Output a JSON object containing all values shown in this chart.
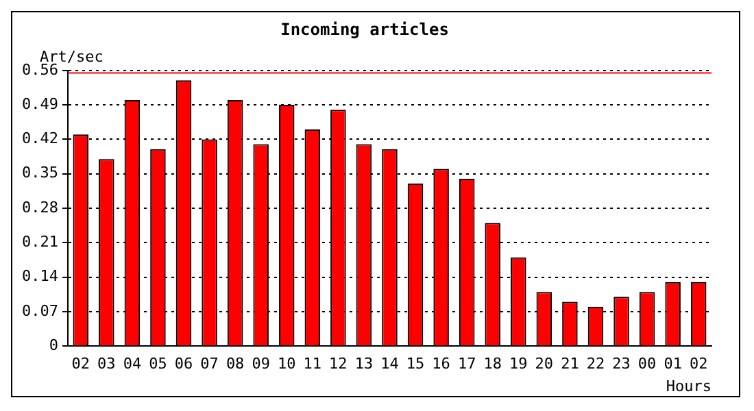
{
  "chart_data": {
    "type": "bar",
    "title": "Incoming articles",
    "ylabel": "Art/sec",
    "xlabel": "Hours",
    "categories": [
      "02",
      "03",
      "04",
      "05",
      "06",
      "07",
      "08",
      "09",
      "10",
      "11",
      "12",
      "13",
      "14",
      "15",
      "16",
      "17",
      "18",
      "19",
      "20",
      "21",
      "22",
      "23",
      "00",
      "01",
      "02"
    ],
    "series": [
      {
        "color": "#ff0000",
        "values": [
          0.43,
          0.38,
          0.5,
          0.4,
          0.54,
          0.42,
          0.5,
          0.41,
          0.49,
          0.44,
          0.48,
          0.41,
          0.4,
          0.33,
          0.36,
          0.34,
          0.25,
          0.18,
          0.11,
          0.09,
          0.08,
          0.1,
          0.11,
          0.13,
          0.13
        ]
      }
    ],
    "ylim": [
      0,
      0.56
    ],
    "yticks": [
      0,
      0.07,
      0.14,
      0.21,
      0.28,
      0.35,
      0.42,
      0.49,
      0.56
    ],
    "ref_lines": [
      {
        "axis": "y",
        "value": 0.555,
        "color": "#ff0000"
      }
    ],
    "grid": "y",
    "legend": false
  }
}
